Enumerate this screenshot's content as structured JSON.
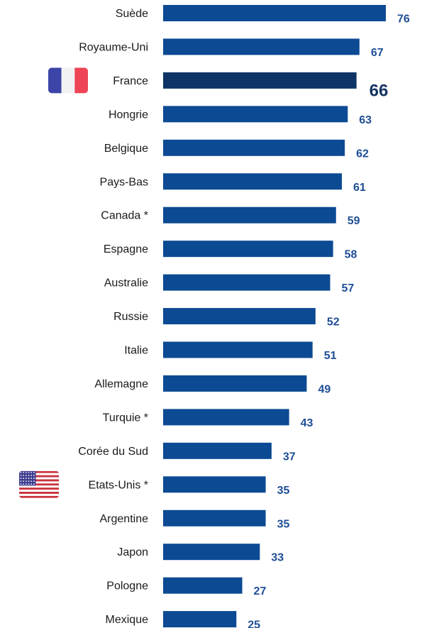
{
  "chart_data": {
    "type": "bar",
    "orientation": "horizontal",
    "categories": [
      "Suède",
      "Royaume-Uni",
      "France",
      "Hongrie",
      "Belgique",
      "Pays-Bas",
      "Canada *",
      "Espagne",
      "Australie",
      "Russie",
      "Italie",
      "Allemagne",
      "Turquie *",
      "Corée du Sud",
      "Etats-Unis *",
      "Argentine",
      "Japon",
      "Pologne",
      "Mexique"
    ],
    "values": [
      76,
      67,
      66,
      63,
      62,
      61,
      59,
      58,
      57,
      52,
      51,
      49,
      43,
      37,
      35,
      35,
      33,
      27,
      25
    ],
    "highlight_category": "France",
    "flags": [
      {
        "category": "France",
        "icon": "france-flag-icon"
      },
      {
        "category": "Etats-Unis *",
        "icon": "usa-flag-icon"
      }
    ],
    "title": "",
    "xlabel": "",
    "ylabel": "",
    "xlim": [
      0,
      76
    ],
    "grid": false,
    "legend": "none",
    "colors": {
      "bar": "#0c4a93",
      "bar_highlight": "#0e3465",
      "value_label": "#1f4e96",
      "value_label_highlight": "#163463",
      "category_label": "#1a1a1a"
    }
  }
}
